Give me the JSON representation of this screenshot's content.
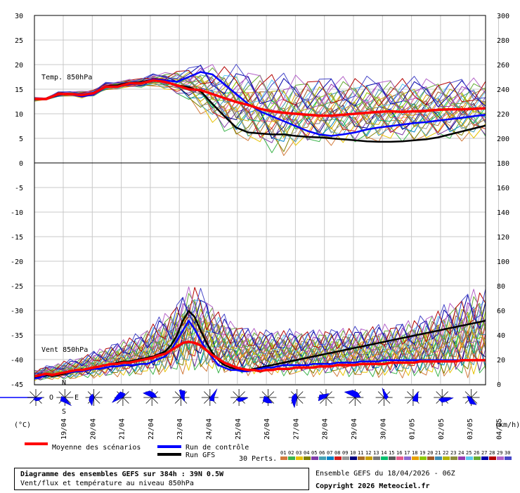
{
  "chart_data": {
    "type": "line",
    "panels": [
      {
        "label": "Temp. 850hPa",
        "left_axis_ticks": [
          "30",
          "25",
          "20",
          "15",
          "10",
          "5",
          "0"
        ],
        "right_axis_ticks": [
          "300",
          "280",
          "260",
          "240",
          "220",
          "200",
          "180"
        ],
        "ylim": [
          0,
          30
        ],
        "mean_scenarios": [
          13,
          13,
          14,
          14,
          13.8,
          14.2,
          15.5,
          15.5,
          16.2,
          16.2,
          16.8,
          16.5,
          15.8,
          15,
          14.8,
          14,
          13.2,
          12.4,
          11.8,
          11,
          10.5,
          10.2,
          10,
          9.8,
          9.6,
          9.6,
          9.8,
          10,
          10.2,
          10.4,
          10.5,
          10.4,
          10.5,
          10.6,
          10.8,
          10.9,
          10.9,
          11,
          11.1
        ],
        "control_run": [
          13,
          13,
          14,
          14,
          13.5,
          14,
          15.5,
          15.6,
          16,
          16.2,
          17,
          16.8,
          16.5,
          17.5,
          18.5,
          18,
          16,
          14,
          12,
          10.5,
          9.5,
          8.5,
          7.5,
          6.5,
          5.8,
          5.5,
          5.8,
          6.2,
          6.8,
          7.2,
          7.5,
          7.8,
          8.1,
          8.3,
          8.6,
          8.9,
          9.2,
          9.5,
          9.8
        ],
        "gfs_run": [
          13,
          13,
          14,
          14,
          13.6,
          14.3,
          15.6,
          15.8,
          16.3,
          16.4,
          17,
          16.4,
          15.8,
          15.4,
          14.6,
          12,
          9.5,
          7.2,
          6.2,
          6,
          5.8,
          5.8,
          5.5,
          5.3,
          5.2,
          5,
          4.8,
          4.6,
          4.4,
          4.3,
          4.3,
          4.4,
          4.6,
          4.8,
          5.2,
          5.8,
          6.4,
          7,
          7.6
        ],
        "perturbations_min": [
          12.5,
          12.8,
          13.4,
          13.6,
          13.1,
          13.6,
          14.8,
          14.9,
          15.3,
          15.3,
          15.6,
          14.8,
          13.6,
          12.2,
          9.8,
          7.5,
          5.8,
          4.6,
          3.5,
          2.5,
          1.5,
          1,
          2.5,
          3,
          3.2,
          3.4,
          3.4,
          3.5,
          3.6,
          3.7,
          3.8,
          3.9,
          3.9,
          4,
          4.1,
          4.2,
          4.3,
          4.4,
          4.5
        ],
        "perturbations_max": [
          13.4,
          13.3,
          14.5,
          14.6,
          14.7,
          14.9,
          16.4,
          16.6,
          17.2,
          17.3,
          18.2,
          18.5,
          19.2,
          19.8,
          20.8,
          20.6,
          20.4,
          20.3,
          19.8,
          19.5,
          19,
          18.6,
          18.5,
          18.4,
          18.3,
          18.2,
          18.1,
          18.1,
          18,
          18,
          17.9,
          17.9,
          17.8,
          17.8,
          17.8,
          17.7,
          17.7,
          17.7,
          17.6
        ]
      },
      {
        "label": "Vent 850hPa",
        "left_axis_ticks": [
          "-5",
          "-10",
          "-15",
          "-20",
          "-25",
          "-30",
          "-35",
          "-40",
          "-45"
        ],
        "right_axis_ticks": [
          "160",
          "140",
          "120",
          "100",
          "80",
          "60",
          "40",
          "20",
          "0"
        ],
        "ylim": [
          0,
          180
        ],
        "mean_scenarios": [
          7,
          8,
          9,
          8,
          9,
          10,
          11,
          12,
          12,
          13,
          14,
          15,
          16,
          17,
          17,
          18,
          18,
          19,
          20,
          21,
          22,
          24,
          25,
          28,
          31,
          34,
          35,
          34,
          32,
          28,
          24,
          21,
          18,
          16,
          14,
          13,
          12,
          12,
          11,
          12,
          12,
          13,
          13,
          13,
          14,
          14,
          14,
          14,
          15,
          15,
          15,
          16,
          16,
          16,
          16,
          17,
          17,
          17,
          17,
          17,
          18,
          18,
          18,
          18,
          18,
          19,
          19,
          19,
          19,
          19,
          19,
          19,
          20,
          20,
          20,
          20,
          20
        ],
        "control_run": [
          5,
          6,
          9,
          8,
          9,
          10,
          10,
          11,
          11,
          12,
          13,
          13,
          14,
          15,
          15,
          16,
          16,
          16,
          17,
          17,
          19,
          21,
          23,
          28,
          36,
          44,
          52,
          45,
          36,
          28,
          22,
          16,
          14,
          12,
          12,
          11,
          11,
          12,
          13,
          14,
          14,
          15,
          16,
          16,
          16,
          16,
          16,
          17,
          17,
          17,
          17,
          18,
          18,
          18,
          18,
          19,
          19,
          19,
          19,
          20,
          20,
          20,
          20,
          20,
          20,
          20,
          20,
          20,
          20,
          20,
          20,
          20,
          20,
          20,
          20,
          20,
          20
        ],
        "gfs_run": [
          6,
          7,
          8,
          7,
          8,
          9,
          10,
          11,
          12,
          13,
          14,
          15,
          16,
          17,
          18,
          19,
          19,
          20,
          21,
          22,
          23,
          25,
          27,
          32,
          40,
          52,
          60,
          55,
          44,
          34,
          26,
          20,
          16,
          14,
          13,
          12,
          12,
          13,
          14,
          15,
          16,
          17,
          18,
          19,
          20,
          21,
          22,
          23,
          24,
          25,
          26,
          27,
          28,
          29,
          30,
          31,
          32,
          33,
          34,
          35,
          36,
          37,
          38,
          39,
          40,
          41,
          42,
          43,
          44,
          45,
          46,
          47,
          48,
          49,
          50,
          51,
          52
        ],
        "perturbations_min": [
          3,
          3,
          4,
          4,
          4,
          4,
          4,
          4,
          5,
          5,
          5,
          5,
          5,
          6,
          6,
          6,
          6,
          6,
          6,
          7,
          7,
          7,
          7,
          7,
          8,
          8,
          8,
          8,
          8,
          8,
          8,
          8,
          8,
          7,
          7,
          7,
          7,
          7,
          7,
          7,
          7,
          7,
          6,
          6,
          6,
          6,
          6,
          6,
          6,
          6,
          6,
          6,
          5,
          5,
          5,
          5,
          5,
          5,
          5,
          5,
          5,
          5,
          5,
          5,
          5,
          5,
          5,
          5,
          5,
          5,
          5,
          5,
          5,
          5,
          5,
          5,
          5
        ],
        "perturbations_max": [
          12,
          14,
          16,
          16,
          18,
          20,
          21,
          22,
          24,
          26,
          28,
          30,
          32,
          34,
          36,
          38,
          40,
          42,
          44,
          48,
          52,
          56,
          60,
          64,
          70,
          76,
          82,
          84,
          80,
          74,
          68,
          62,
          58,
          54,
          52,
          50,
          48,
          47,
          46,
          46,
          46,
          46,
          46,
          46,
          46,
          46,
          46,
          46,
          46,
          47,
          47,
          47,
          48,
          48,
          48,
          49,
          49,
          50,
          50,
          51,
          51,
          52,
          53,
          54,
          55,
          57,
          59,
          61,
          63,
          66,
          69,
          72,
          75,
          78,
          80,
          80,
          80
        ]
      }
    ],
    "x_labels": [
      "19/04",
      "20/04",
      "21/04",
      "22/04",
      "23/04",
      "24/04",
      "25/04",
      "26/04",
      "27/04",
      "28/04",
      "29/04",
      "30/04",
      "01/05",
      "02/05",
      "03/05",
      "04/05"
    ],
    "left_unit": "(°C)",
    "right_unit": "(km/h)",
    "compass_labels": [
      "N",
      "O",
      "E",
      "S"
    ],
    "legend": [
      {
        "label": "Moyenne des scénarios",
        "color": "#ff0000"
      },
      {
        "label": "Run de contrôle",
        "color": "#0000ff"
      },
      {
        "label": "Run GFS",
        "color": "#000000"
      },
      {
        "label": "30 Perts.",
        "color": "#808080"
      }
    ],
    "perturbation_ids": [
      "01",
      "02",
      "03",
      "04",
      "05",
      "06",
      "07",
      "08",
      "09",
      "10",
      "11",
      "12",
      "13",
      "14",
      "15",
      "16",
      "17",
      "18",
      "19",
      "20",
      "21",
      "22",
      "23",
      "24",
      "25",
      "26",
      "27",
      "28",
      "29",
      "30"
    ],
    "perturbation_colors": [
      "#d27b3c",
      "#3cb44b",
      "#e6c200",
      "#808000",
      "#7e3aa8",
      "#46a0b4",
      "#0082c8",
      "#d21e1e",
      "#969696",
      "#000080",
      "#aa6e28",
      "#c8a000",
      "#787878",
      "#00be6e",
      "#5a5a5a",
      "#e65a8c",
      "#8c6ad2",
      "#e6a000",
      "#8cc800",
      "#a05a28",
      "#3c8cb4",
      "#b4b400",
      "#8c8c3c",
      "#963cb4",
      "#5ac8f0",
      "#64aa32",
      "#0000aa",
      "#b40000",
      "#b464c8",
      "#4646c8"
    ],
    "wind_direction_label_nw": "N"
  },
  "footer": {
    "title": "Diagramme des ensembles GEFS sur 384h : 39N 0.5W",
    "subtitle": "Vent/flux et température au niveau 850hPa",
    "run": "Ensemble GEFS du 18/04/2026 - 06Z",
    "copyright": "Copyright 2026 Meteociel.fr"
  }
}
